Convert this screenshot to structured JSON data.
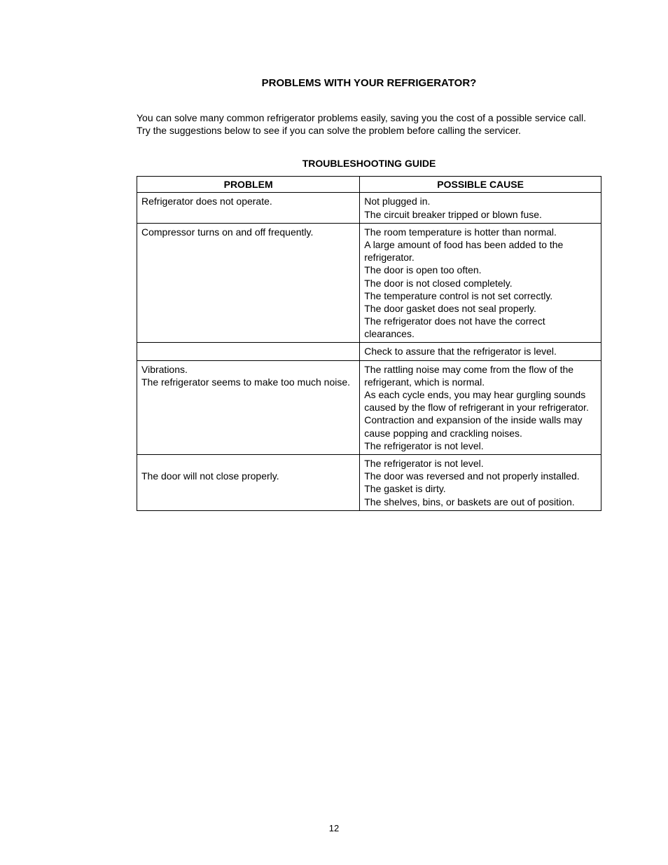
{
  "page": {
    "title": "PROBLEMS WITH YOUR REFRIGERATOR?",
    "intro": "You can solve many common refrigerator problems easily, saving you the cost of a possible service call. Try the suggestions below to see if you can solve the problem before calling the servicer.",
    "guideTitle": "TROUBLESHOOTING GUIDE",
    "pageNumber": "12"
  },
  "table": {
    "headers": {
      "problem": "PROBLEM",
      "cause": "POSSIBLE CAUSE"
    },
    "rows": [
      {
        "problem": "Refrigerator does not operate.",
        "cause": "Not plugged in.\nThe circuit breaker tripped or blown fuse."
      },
      {
        "problem": "Compressor turns on and off frequently.",
        "cause": "The room temperature is hotter than normal.\nA large amount of food has been added to the refrigerator.\nThe door is open too often.\nThe door is not closed completely.\nThe temperature control is not set correctly.\nThe door gasket does not seal properly.\nThe refrigerator does not have the correct clearances."
      },
      {
        "problem": "",
        "cause": "Check to assure that the refrigerator is level."
      },
      {
        "problem": "Vibrations.\nThe refrigerator seems to make too much noise.",
        "cause": "The rattling noise may come from the flow of the refrigerant, which is normal.\nAs each cycle ends, you may hear gurgling sounds caused by the flow of refrigerant in your refrigerator.\nContraction and expansion of the inside walls may cause popping and crackling noises.\nThe refrigerator is not level."
      },
      {
        "problem": "\nThe door will not close properly.",
        "cause": "The refrigerator is not level.\nThe door was reversed and not properly installed.\nThe gasket is dirty.\nThe shelves, bins, or baskets are out of position."
      }
    ]
  },
  "styling": {
    "fontFamily": "Arial, Helvetica, sans-serif",
    "backgroundColor": "#ffffff",
    "textColor": "#000000",
    "borderColor": "#000000",
    "titleFontSize": 15,
    "bodyFontSize": 14,
    "pageNumberFontSize": 13,
    "pageWidth": 954,
    "pageHeight": 1234
  }
}
